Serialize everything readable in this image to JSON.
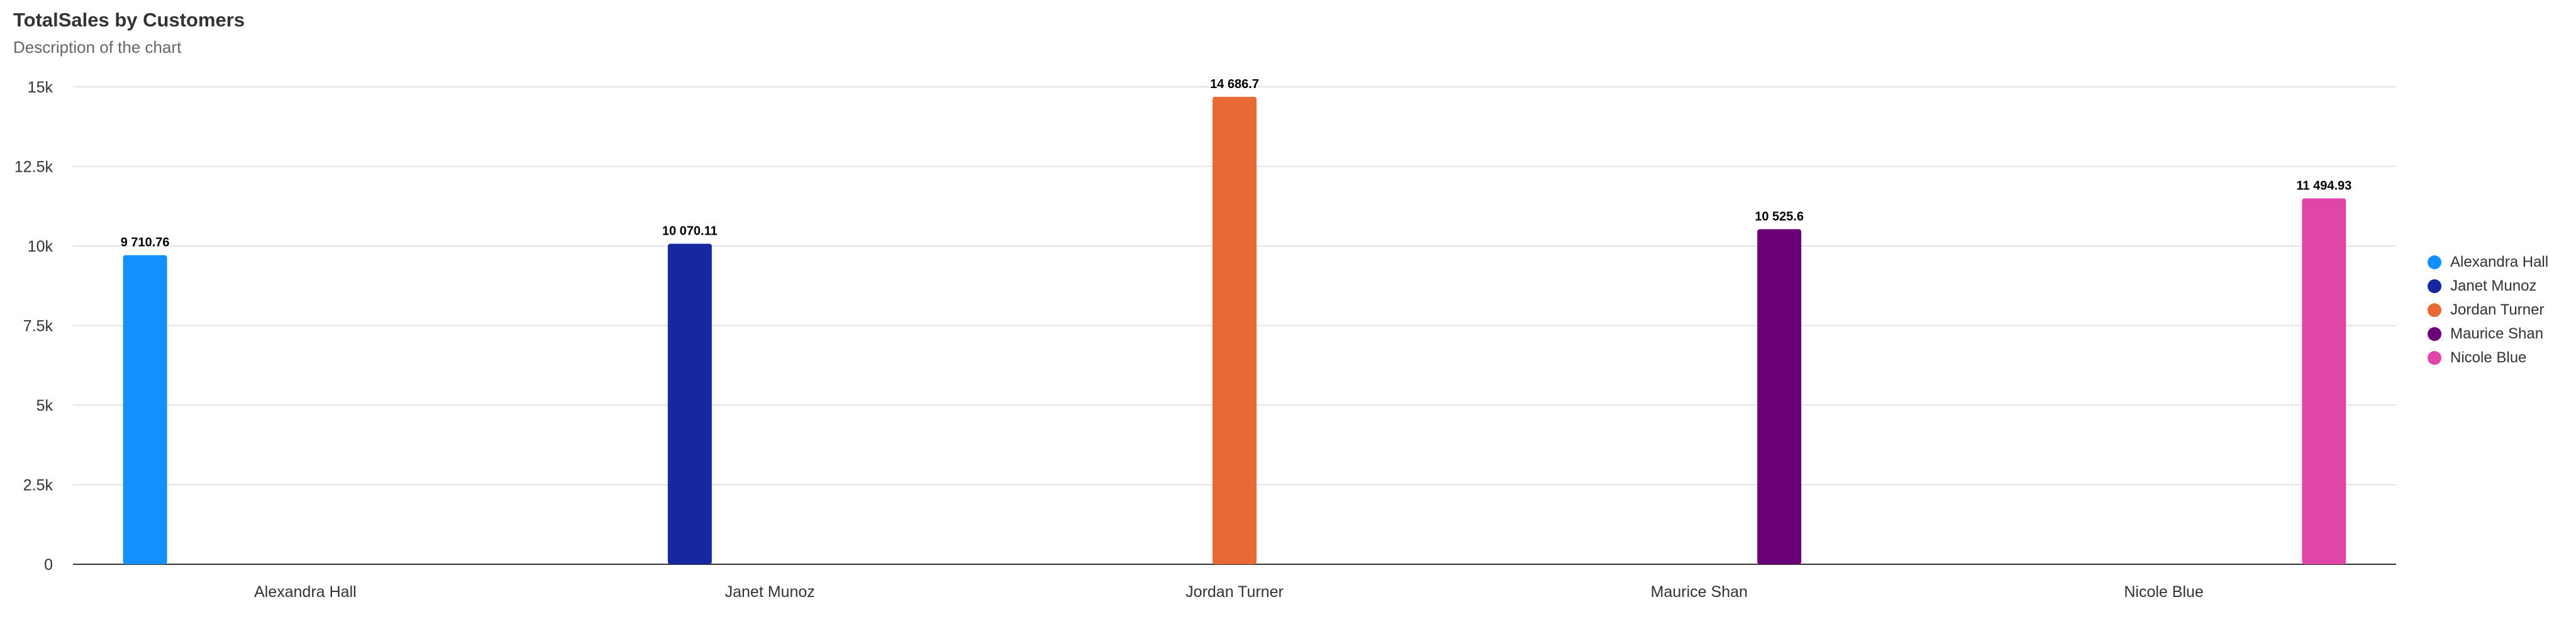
{
  "chart_data": {
    "type": "bar",
    "title": "TotalSales by Customers",
    "subtitle": "Description of the chart",
    "xlabel": "",
    "ylabel": "",
    "categories": [
      "Alexandra Hall",
      "Janet Munoz",
      "Jordan Turner",
      "Maurice Shan",
      "Nicole Blue"
    ],
    "series": [
      {
        "name": "Alexandra Hall",
        "color": "#1390fd",
        "values": [
          9710.76,
          null,
          null,
          null,
          null
        ],
        "labels": [
          "9 710.76",
          "",
          "",
          "",
          ""
        ]
      },
      {
        "name": "Janet Munoz",
        "color": "#1528a0",
        "values": [
          null,
          10070.11,
          null,
          null,
          null
        ],
        "labels": [
          "",
          "10 070.11",
          "",
          "",
          ""
        ]
      },
      {
        "name": "Jordan Turner",
        "color": "#e76a35",
        "values": [
          null,
          null,
          14686.7,
          null,
          null
        ],
        "labels": [
          "",
          "",
          "14 686.7",
          "",
          ""
        ]
      },
      {
        "name": "Maurice Shan",
        "color": "#6b0077",
        "values": [
          null,
          null,
          null,
          10525.6,
          null
        ],
        "labels": [
          "",
          "",
          "",
          "10 525.6",
          ""
        ]
      },
      {
        "name": "Nicole Blue",
        "color": "#e245a8",
        "values": [
          null,
          null,
          null,
          null,
          11494.93
        ],
        "labels": [
          "",
          "",
          "",
          "",
          "11 494.93"
        ]
      }
    ],
    "ylim": [
      0,
      15000
    ],
    "yticks": [
      0,
      2500,
      5000,
      7500,
      10000,
      12500,
      15000
    ],
    "ytick_labels": [
      "0",
      "2.5k",
      "5k",
      "7.5k",
      "10k",
      "12.5k",
      "15k"
    ],
    "grid": true,
    "legend_position": "right"
  }
}
